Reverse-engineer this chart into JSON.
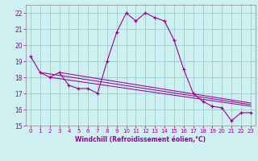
{
  "background_color": "#cff0f0",
  "line_color": "#990099",
  "grid_color": "#99cccc",
  "xlabel": "Windchill (Refroidissement éolien,°C)",
  "x_values": [
    0,
    1,
    2,
    3,
    4,
    5,
    6,
    7,
    8,
    9,
    10,
    11,
    12,
    13,
    14,
    15,
    16,
    17,
    18,
    19,
    20,
    21,
    22,
    23
  ],
  "series_main": [
    19.3,
    18.3,
    18.0,
    18.3,
    17.5,
    17.3,
    17.3,
    17.0,
    19.0,
    20.8,
    22.0,
    21.5,
    22.0,
    21.7,
    21.5,
    20.3,
    18.5,
    17.0,
    16.5,
    16.2,
    16.1,
    15.3,
    15.8,
    15.8
  ],
  "line1_x": [
    1,
    23
  ],
  "line1_y": [
    18.3,
    16.3
  ],
  "line2_x": [
    2,
    23
  ],
  "line2_y": [
    18.0,
    16.2
  ],
  "line3_x": [
    3,
    23
  ],
  "line3_y": [
    18.3,
    16.4
  ],
  "ylim": [
    15.0,
    22.5
  ],
  "xlim": [
    -0.5,
    23.5
  ],
  "yticks": [
    15,
    16,
    17,
    18,
    19,
    20,
    21,
    22
  ],
  "xticks": [
    0,
    1,
    2,
    3,
    4,
    5,
    6,
    7,
    8,
    9,
    10,
    11,
    12,
    13,
    14,
    15,
    16,
    17,
    18,
    19,
    20,
    21,
    22,
    23
  ]
}
